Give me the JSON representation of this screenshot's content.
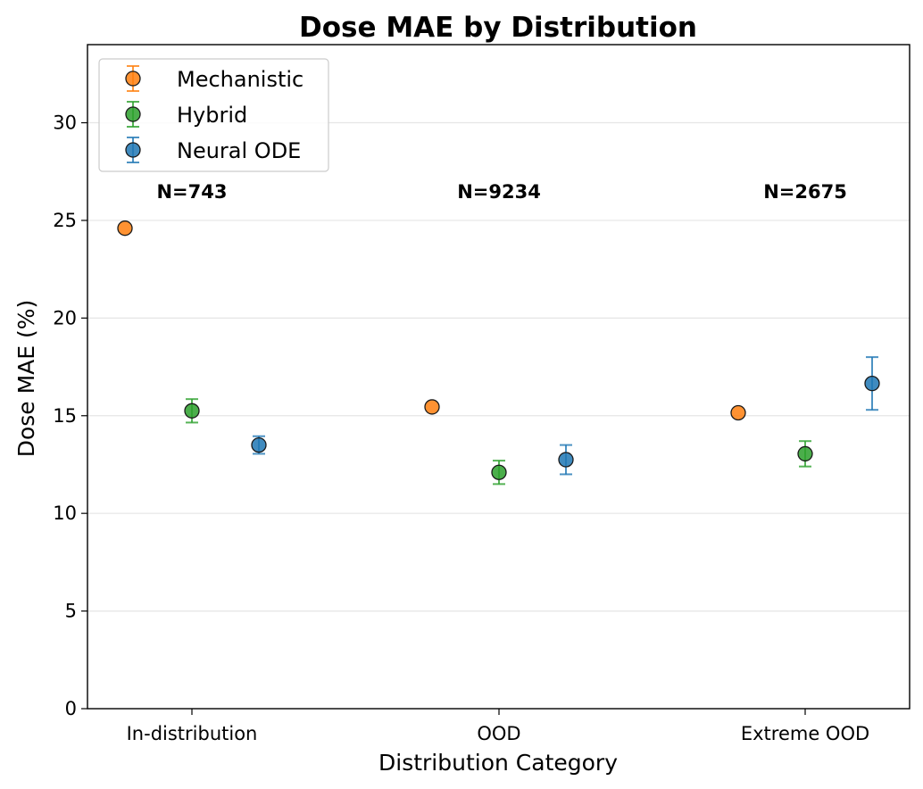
{
  "chart_data": {
    "type": "scatter",
    "title": "Dose MAE by Distribution",
    "xlabel": "Distribution Category",
    "ylabel": "Dose MAE (%)",
    "categories": [
      "In-distribution",
      "OOD",
      "Extreme OOD"
    ],
    "ylim": [
      0,
      34
    ],
    "yticks": [
      0,
      5,
      10,
      15,
      20,
      25,
      30
    ],
    "grid": "horizontal",
    "legend_position": "top-left",
    "series": [
      {
        "name": "Mechanistic",
        "color": "#ff7f0e",
        "values": [
          24.6,
          15.45,
          15.15
        ],
        "errors": [
          0,
          0,
          0
        ]
      },
      {
        "name": "Hybrid",
        "color": "#2ca02c",
        "values": [
          15.25,
          12.1,
          13.05
        ],
        "errors": [
          0.6,
          0.6,
          0.65
        ]
      },
      {
        "name": "Neural ODE",
        "color": "#1f77b4",
        "values": [
          13.5,
          12.75,
          16.65
        ],
        "errors": [
          0.45,
          0.75,
          1.35
        ]
      }
    ],
    "annotations": [
      {
        "category": "In-distribution",
        "text": "N=743",
        "y": 26.5
      },
      {
        "category": "OOD",
        "text": "N=9234",
        "y": 26.5
      },
      {
        "category": "Extreme OOD",
        "text": "N=2675",
        "y": 26.5
      }
    ]
  }
}
